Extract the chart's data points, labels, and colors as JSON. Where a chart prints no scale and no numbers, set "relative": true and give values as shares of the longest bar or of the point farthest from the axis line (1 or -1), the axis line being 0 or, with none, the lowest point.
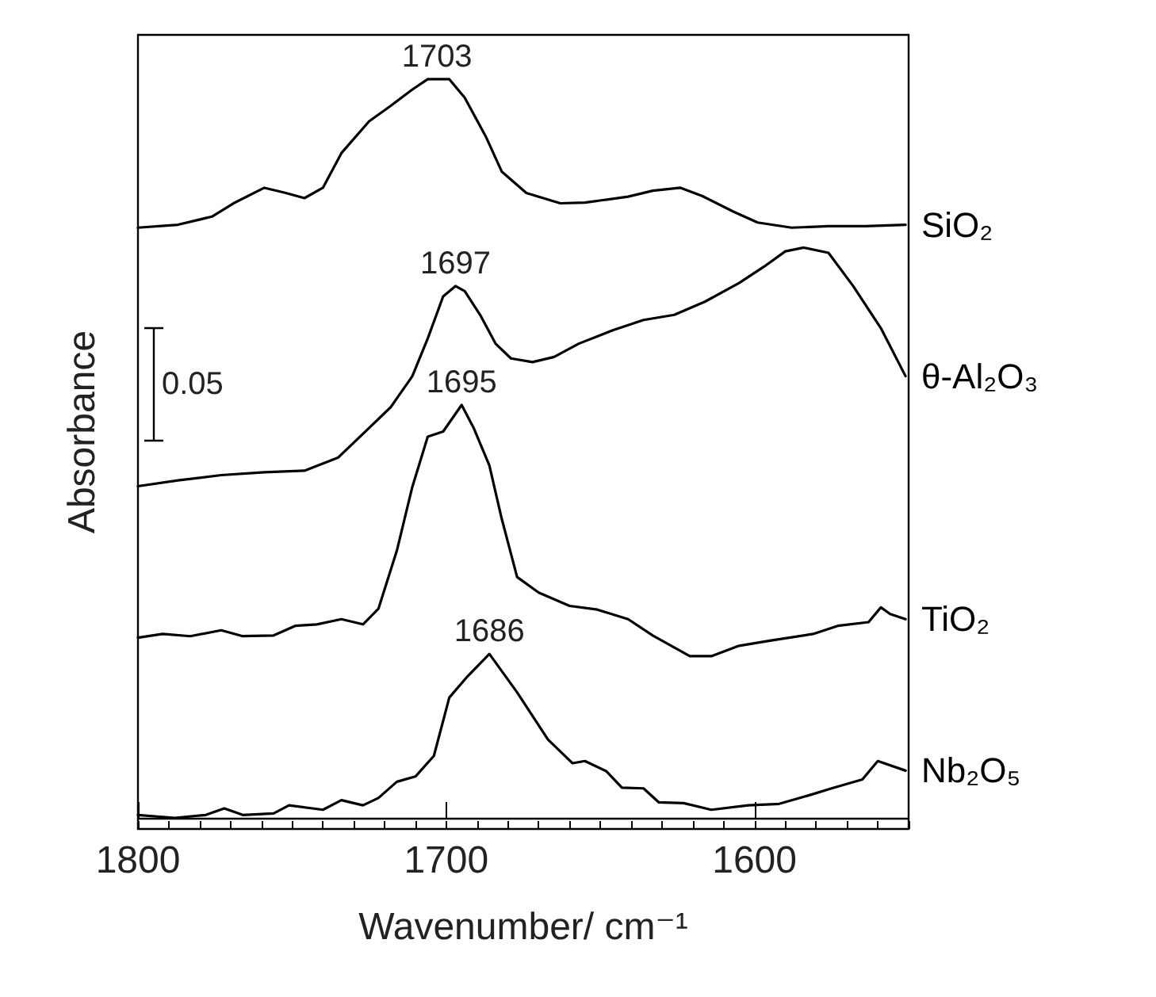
{
  "chart_data": {
    "type": "line",
    "relative": true,
    "xlabel": "Wavenumber/ cm⁻¹",
    "ylabel": "Absorbance",
    "xlim": [
      1800,
      1550
    ],
    "xticks": [
      1800,
      1700,
      1600
    ],
    "grid": false,
    "legend": false,
    "marker": "none",
    "line_style": "solid",
    "series": [
      {
        "name": "SiO₂",
        "color": "#000000",
        "x": [
          1800,
          1787,
          1776,
          1769,
          1759,
          1752,
          1746,
          1740,
          1734,
          1725,
          1718,
          1711,
          1706,
          1703,
          1699,
          1694,
          1687,
          1682,
          1674,
          1663,
          1655,
          1641,
          1633,
          1624,
          1617,
          1607,
          1599,
          1588,
          1576,
          1564,
          1551
        ],
        "values": [
          0.799,
          0.803,
          0.814,
          0.832,
          0.853,
          0.846,
          0.839,
          0.853,
          0.9,
          0.943,
          0.964,
          0.986,
          1.0,
          1.0,
          1.0,
          0.975,
          0.921,
          0.875,
          0.846,
          0.832,
          0.833,
          0.841,
          0.849,
          0.853,
          0.842,
          0.821,
          0.806,
          0.799,
          0.801,
          0.801,
          0.803
        ]
      },
      {
        "name": "θ-Al₂O₃",
        "color": "#000000",
        "x": [
          1800,
          1787,
          1773,
          1759,
          1746,
          1735,
          1727,
          1718,
          1711,
          1706,
          1701,
          1697,
          1694,
          1689,
          1684,
          1679,
          1672,
          1665,
          1657,
          1646,
          1636,
          1626,
          1616,
          1605,
          1597,
          1590,
          1584,
          1576,
          1568,
          1559,
          1551
        ],
        "values": [
          0.449,
          0.457,
          0.464,
          0.468,
          0.47,
          0.488,
          0.52,
          0.556,
          0.598,
          0.649,
          0.706,
          0.72,
          0.713,
          0.681,
          0.642,
          0.622,
          0.617,
          0.624,
          0.642,
          0.66,
          0.674,
          0.681,
          0.699,
          0.724,
          0.746,
          0.767,
          0.772,
          0.765,
          0.72,
          0.663,
          0.598
        ]
      },
      {
        "name": "TiO₂",
        "color": "#000000",
        "x": [
          1800,
          1792,
          1783,
          1773,
          1766,
          1756,
          1749,
          1742,
          1734,
          1727,
          1722,
          1716,
          1711,
          1706,
          1701,
          1695,
          1691,
          1686,
          1682,
          1677,
          1670,
          1660,
          1651,
          1641,
          1633,
          1621,
          1614,
          1605,
          1595,
          1581,
          1573,
          1563,
          1559,
          1556,
          1551
        ],
        "values": [
          0.244,
          0.249,
          0.246,
          0.254,
          0.246,
          0.247,
          0.26,
          0.262,
          0.269,
          0.262,
          0.283,
          0.362,
          0.448,
          0.516,
          0.523,
          0.559,
          0.527,
          0.477,
          0.405,
          0.326,
          0.305,
          0.287,
          0.282,
          0.269,
          0.247,
          0.219,
          0.219,
          0.233,
          0.24,
          0.249,
          0.26,
          0.265,
          0.285,
          0.276,
          0.269
        ]
      },
      {
        "name": "Nb₂O₅",
        "color": "#000000",
        "x": [
          1800,
          1788,
          1778,
          1772,
          1766,
          1756,
          1751,
          1740,
          1734,
          1727,
          1722,
          1716,
          1710,
          1704,
          1699,
          1693,
          1686,
          1677,
          1667,
          1659,
          1655,
          1648,
          1643,
          1636,
          1631,
          1623,
          1614,
          1602,
          1592,
          1582,
          1575,
          1565,
          1560,
          1551
        ],
        "values": [
          0.004,
          0,
          0.004,
          0.013,
          0.004,
          0.006,
          0.017,
          0.011,
          0.024,
          0.017,
          0.027,
          0.049,
          0.056,
          0.084,
          0.163,
          0.192,
          0.222,
          0.17,
          0.106,
          0.074,
          0.077,
          0.063,
          0.041,
          0.04,
          0.021,
          0.02,
          0.011,
          0.017,
          0.019,
          0.031,
          0.04,
          0.052,
          0.077,
          0.064
        ]
      }
    ],
    "annotations": [
      {
        "text": "1703",
        "x": 1703,
        "y": 1.0
      },
      {
        "text": "1697",
        "x": 1697,
        "y": 0.72
      },
      {
        "text": "1695",
        "x": 1695,
        "y": 0.559
      },
      {
        "text": "1686",
        "x": 1686,
        "y": 0.222
      },
      "0.05"
    ]
  }
}
